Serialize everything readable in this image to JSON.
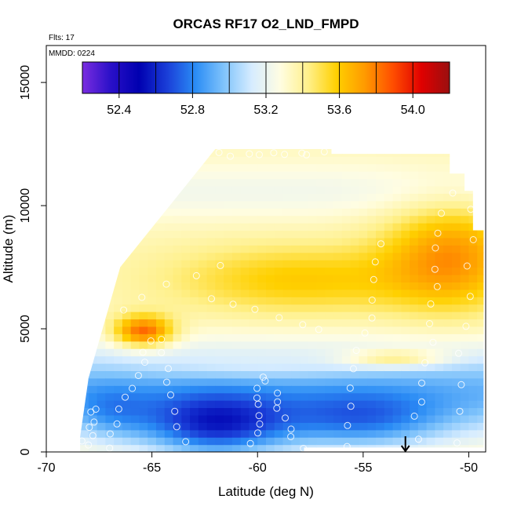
{
  "chart_data": {
    "type": "heatmap",
    "title": "ORCAS RF17 O2_LND_FMPD",
    "subtitle_flights": "Flts: 17",
    "subtitle_date": "MMDD: 0224",
    "xlabel": "Latitude (deg N)",
    "ylabel": "Altitude (m)",
    "xlim": [
      -70,
      -49.2
    ],
    "ylim": [
      0,
      16500
    ],
    "x_ticks": [
      -70,
      -65,
      -60,
      -55,
      -50
    ],
    "x_tick_labels": [
      "-70",
      "-65",
      "-60",
      "-55",
      "-50"
    ],
    "y_ticks": [
      0,
      5000,
      10000,
      15000
    ],
    "y_tick_labels": [
      "0",
      "5000",
      "10000",
      "15000"
    ],
    "colorbar": {
      "min": 52.2,
      "max": 54.2,
      "ticks": [
        52.4,
        52.8,
        53.2,
        53.6,
        54.0
      ],
      "tick_labels": [
        "52.4",
        "52.8",
        "53.2",
        "53.6",
        "54.0"
      ],
      "colors": [
        "#7a2de0",
        "#2a10c8",
        "#0000b0",
        "#1a3ed8",
        "#2a8cf5",
        "#7fc3fb",
        "#d6ecff",
        "#fffde2",
        "#fff08a",
        "#ffd000",
        "#ff9a00",
        "#ff4d00",
        "#e00000",
        "#9a0f0f"
      ]
    },
    "marker_latitude": -53,
    "coverage_lat_range": [
      -68.4,
      -49.3
    ],
    "coverage_alt_range": [
      0,
      12300
    ],
    "features": [
      {
        "lat": -65.5,
        "alt": 4800,
        "value": 54.0
      },
      {
        "lat": -51,
        "alt": 8000,
        "value": 53.8
      },
      {
        "lat": -60,
        "alt": 1300,
        "value": 52.3
      },
      {
        "lat": -64,
        "alt": 800,
        "value": 52.3
      },
      {
        "lat": -53,
        "alt": 3800,
        "value": 53.5
      },
      {
        "lat": -58,
        "alt": 7000,
        "value": 53.4
      }
    ]
  }
}
